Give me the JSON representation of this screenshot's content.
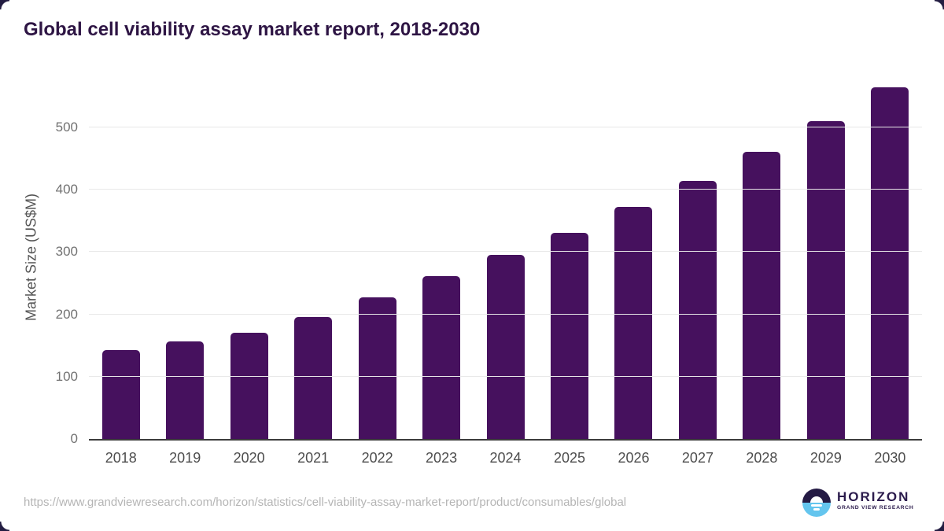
{
  "header": {
    "title": "Global cell viability assay market report, 2018-2030"
  },
  "footer": {
    "source_url": "https://www.grandviewresearch.com/horizon/statistics/cell-viability-assay-market-report/product/consumables/global",
    "logo": {
      "brand": "HORIZON",
      "tagline": "GRAND VIEW RESEARCH"
    }
  },
  "colors": {
    "bar": "#46115e",
    "title_text": "#2e1544",
    "y_tick_text": "#727272",
    "x_tick_text": "#4d4d4d",
    "gridline": "#e8e8e8",
    "axis_line": "#3c3c3c",
    "url_text": "#b5b5b5",
    "logo_dark": "#241a44",
    "logo_blue": "#64c5ee"
  },
  "chart_data": {
    "type": "bar",
    "title": "Global cell viability assay market report, 2018-2030",
    "categories": [
      "2018",
      "2019",
      "2020",
      "2021",
      "2022",
      "2023",
      "2024",
      "2025",
      "2026",
      "2027",
      "2028",
      "2029",
      "2030"
    ],
    "values": [
      143,
      156,
      171,
      196,
      227,
      261,
      295,
      331,
      372,
      414,
      461,
      510,
      564
    ],
    "xlabel": "",
    "ylabel": "Market Size (US$M)",
    "ylim": [
      0,
      583
    ],
    "yticks": [
      0,
      100,
      200,
      300,
      400,
      500
    ],
    "grid": true,
    "legend": false,
    "bar_color": "#46115e"
  }
}
